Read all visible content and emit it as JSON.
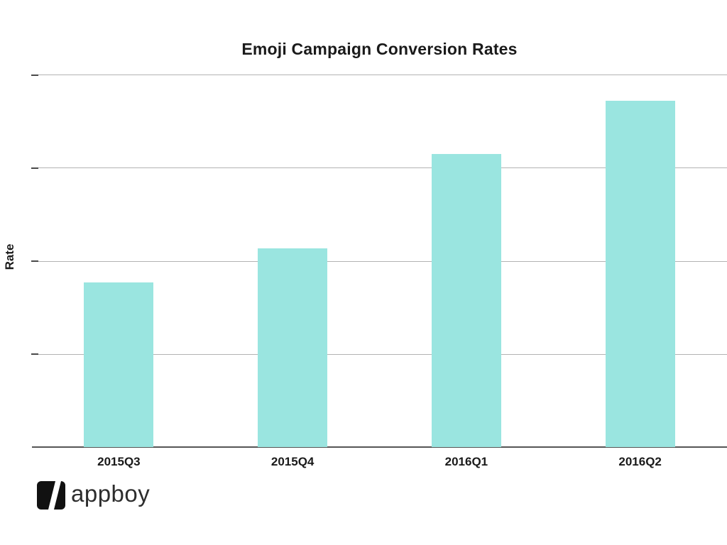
{
  "chart_data": {
    "type": "bar",
    "title": "Emoji Campaign Conversion Rates",
    "categories": [
      "2015Q3",
      "2015Q4",
      "2016Q1",
      "2016Q2"
    ],
    "values": [
      1.77,
      2.13,
      3.15,
      3.72
    ],
    "xlabel": "",
    "ylabel": "Rate",
    "ylim": [
      0,
      4
    ],
    "y_gridlines": [
      1,
      2,
      3,
      4
    ],
    "y_tick_labels_visible": false,
    "legend_position": "none",
    "grid": "horizontal",
    "bar_color": "#9ae5e0",
    "gridline_color": "#b3b3b3",
    "tick_color": "#4a4a4a",
    "axis_color": "#555555",
    "text_color": "#1a1a1a"
  },
  "footer": {
    "brand": "appboy",
    "logo_icon": "appboy-slash-logo",
    "logo_color": "#111111"
  }
}
